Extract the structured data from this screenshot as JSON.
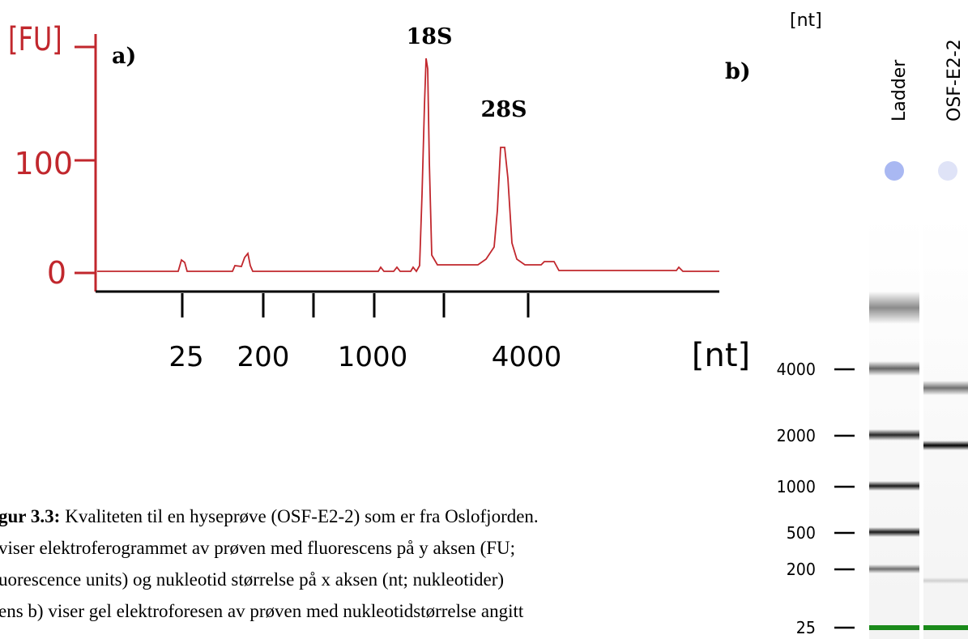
{
  "panel_a": {
    "label": "a)",
    "y_axis_label": "[FU]",
    "y_ticks": [
      "100",
      "0"
    ],
    "x_ticks": [
      "25",
      "200",
      "1000",
      "4000"
    ],
    "x_axis_label": "[nt]",
    "peaks": [
      "18S",
      "28S"
    ]
  },
  "panel_b": {
    "label": "b)",
    "unit": "[nt]",
    "lanes": [
      "Ladder",
      "OSF-E2-2"
    ],
    "size_markers": [
      "4000",
      "2000",
      "1000",
      "500",
      "200",
      "25"
    ]
  },
  "caption": {
    "lead": "gur 3.3:",
    "lines": [
      "Kvaliteten til en hyseprøve (OSF-E2-2) som er fra Oslofjorden.",
      "viser elektroferogrammet av prøven med fluorescens på y aksen (FU;",
      "uorescence units) og nukleotid størrelse på x aksen (nt; nukleotider)",
      "ens b) viser gel elektroforesen av prøven med nukleotidstørrelse angitt"
    ]
  }
}
